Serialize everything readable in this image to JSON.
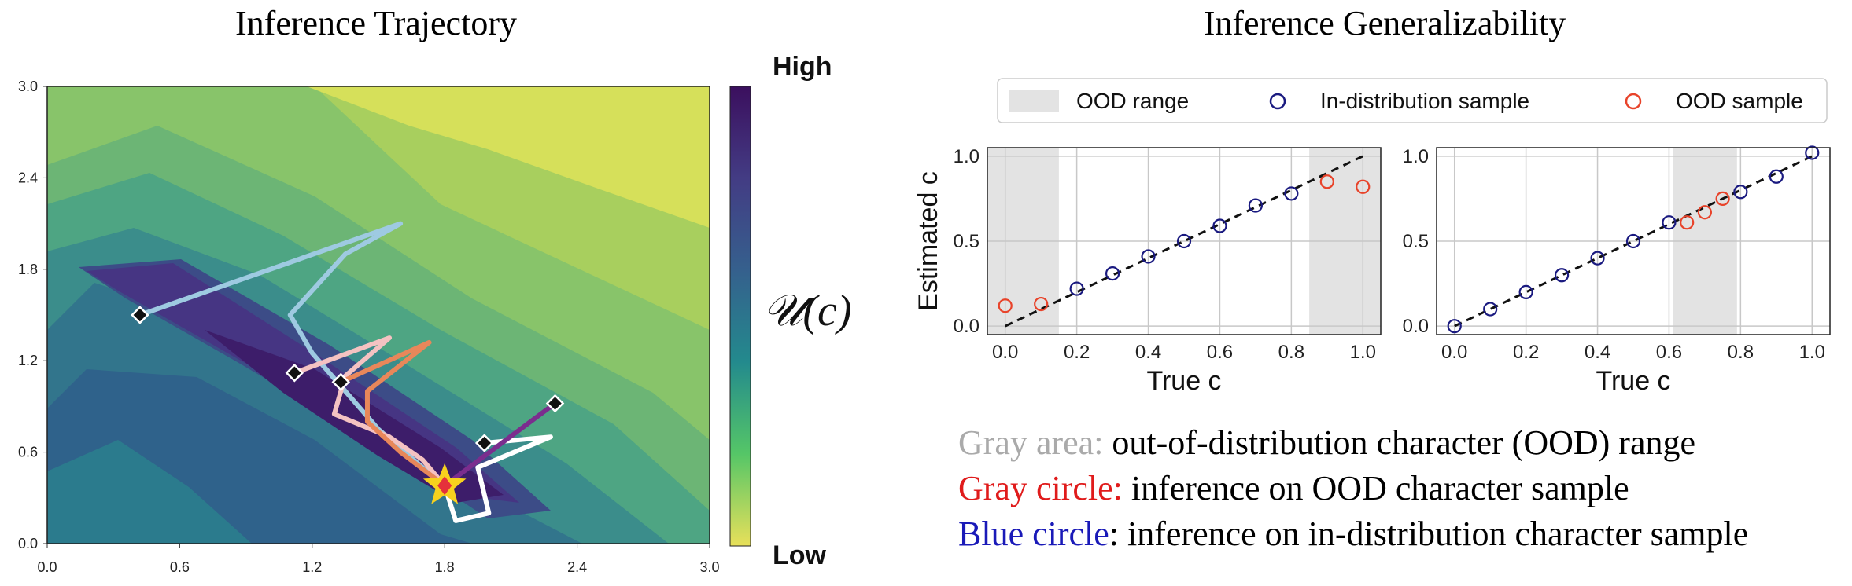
{
  "left_panel": {
    "title": "Inference Trajectory",
    "colorbar_high": "High",
    "colorbar_low": "Low",
    "colorbar_label": "𝒰(c)"
  },
  "right_panel": {
    "title": "Inference Generalizability",
    "legend": {
      "ood_range": "OOD range",
      "in_dist": "In-distribution sample",
      "ood_sample": "OOD sample"
    }
  },
  "captions": [
    {
      "prefix": "Gray area:",
      "prefix_color": "#aaaaaa",
      "text": " out-of-distribution character (OOD) range"
    },
    {
      "prefix": "Gray circle:",
      "prefix_color": "#e01b1b",
      "text": " inference on OOD character sample"
    },
    {
      "prefix": "Blue circle",
      "prefix_color": "#1a1ab8",
      "text": ": inference on in-distribution character sample"
    }
  ],
  "chart_data": [
    {
      "type": "heatmap",
      "title": "Inference Trajectory",
      "xlim": [
        0.0,
        3.0
      ],
      "ylim": [
        0.0,
        3.0
      ],
      "x_ticks": [
        "0.0",
        "0.6",
        "1.2",
        "1.8",
        "2.4",
        "3.0"
      ],
      "y_ticks": [
        "0.0",
        "0.6",
        "1.2",
        "1.8",
        "2.4",
        "3.0"
      ],
      "colorbar": {
        "label": "𝒰(c)",
        "high": "High",
        "low": "Low"
      },
      "target": [
        1.8,
        0.38
      ],
      "trajectories": [
        {
          "color": "#9ecae1",
          "start": [
            0.42,
            1.5
          ],
          "path": [
            [
              0.42,
              1.5
            ],
            [
              1.6,
              2.1
            ],
            [
              1.35,
              1.9
            ],
            [
              1.1,
              1.5
            ],
            [
              1.2,
              1.25
            ],
            [
              1.35,
              1.0
            ],
            [
              1.5,
              0.75
            ],
            [
              1.7,
              0.5
            ],
            [
              1.8,
              0.38
            ]
          ]
        },
        {
          "color": "#f4c2c2",
          "start": [
            1.12,
            1.12
          ],
          "path": [
            [
              1.12,
              1.12
            ],
            [
              1.55,
              1.35
            ],
            [
              1.35,
              1.1
            ],
            [
              1.3,
              0.85
            ],
            [
              1.55,
              0.7
            ],
            [
              1.7,
              0.55
            ],
            [
              1.8,
              0.38
            ]
          ]
        },
        {
          "color": "#e8875a",
          "start": [
            1.33,
            1.06
          ],
          "path": [
            [
              1.33,
              1.06
            ],
            [
              1.73,
              1.32
            ],
            [
              1.45,
              1.0
            ],
            [
              1.45,
              0.8
            ],
            [
              1.6,
              0.6
            ],
            [
              1.8,
              0.38
            ]
          ]
        },
        {
          "color": "#ffffff",
          "start": [
            1.98,
            0.66
          ],
          "path": [
            [
              1.98,
              0.66
            ],
            [
              2.28,
              0.7
            ],
            [
              1.95,
              0.5
            ],
            [
              2.0,
              0.2
            ],
            [
              1.85,
              0.15
            ],
            [
              1.8,
              0.38
            ]
          ]
        },
        {
          "color": "#7b2d8e",
          "start": [
            2.3,
            0.92
          ],
          "path": [
            [
              2.3,
              0.92
            ],
            [
              1.8,
              0.38
            ]
          ]
        }
      ]
    },
    {
      "type": "scatter",
      "xlabel": "True c",
      "ylabel": "Estimated c",
      "xlim": [
        -0.05,
        1.05
      ],
      "ylim": [
        -0.05,
        1.05
      ],
      "x_ticks": [
        "0.0",
        "0.2",
        "0.4",
        "0.6",
        "0.8",
        "1.0"
      ],
      "y_ticks": [
        "0.0",
        "0.5",
        "1.0"
      ],
      "ood_ranges": [
        [
          -0.05,
          0.15
        ],
        [
          0.85,
          1.05
        ]
      ],
      "series": [
        {
          "name": "In-distribution sample",
          "color": "#1a1a80",
          "x": [
            0.2,
            0.3,
            0.4,
            0.5,
            0.6,
            0.7,
            0.8
          ],
          "y": [
            0.22,
            0.31,
            0.41,
            0.5,
            0.59,
            0.71,
            0.78
          ]
        },
        {
          "name": "OOD sample",
          "color": "#e8432a",
          "x": [
            0.0,
            0.1,
            0.9,
            1.0
          ],
          "y": [
            0.12,
            0.13,
            0.85,
            0.82
          ]
        }
      ]
    },
    {
      "type": "scatter",
      "xlabel": "True c",
      "xlim": [
        -0.05,
        1.05
      ],
      "ylim": [
        -0.05,
        1.05
      ],
      "x_ticks": [
        "0.0",
        "0.2",
        "0.4",
        "0.6",
        "0.8",
        "1.0"
      ],
      "y_ticks": [
        "0.0",
        "0.5",
        "1.0"
      ],
      "ood_ranges": [
        [
          0.61,
          0.79
        ]
      ],
      "series": [
        {
          "name": "In-distribution sample",
          "color": "#1a1a80",
          "x": [
            0.0,
            0.1,
            0.2,
            0.3,
            0.4,
            0.5,
            0.6,
            0.8,
            0.9,
            1.0
          ],
          "y": [
            0.0,
            0.1,
            0.2,
            0.3,
            0.4,
            0.5,
            0.61,
            0.79,
            0.88,
            1.02
          ]
        },
        {
          "name": "OOD sample",
          "color": "#e8432a",
          "x": [
            0.65,
            0.7,
            0.75
          ],
          "y": [
            0.61,
            0.67,
            0.75
          ]
        }
      ]
    }
  ]
}
